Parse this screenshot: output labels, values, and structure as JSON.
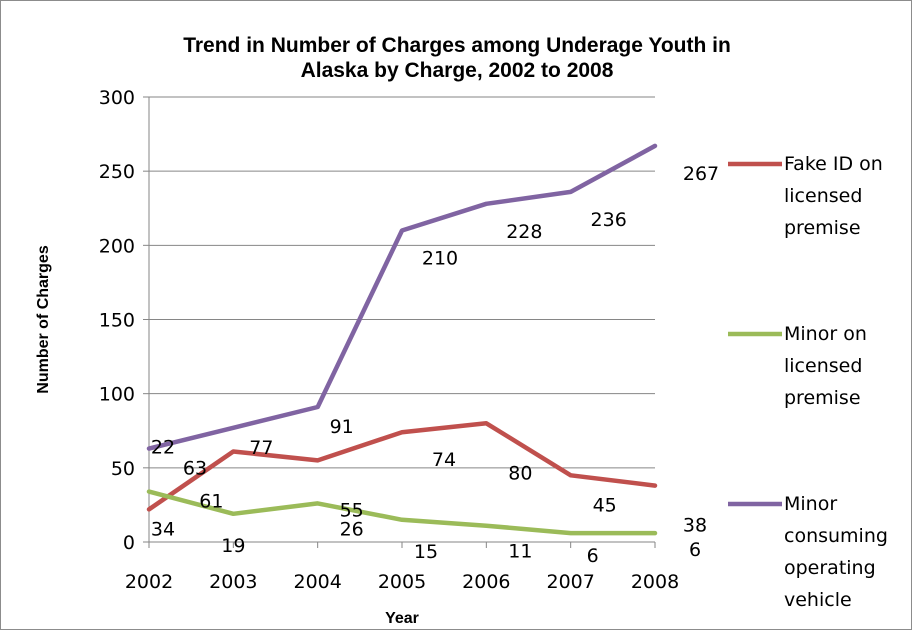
{
  "chart_data": {
    "type": "line",
    "title_lines": [
      "Trend in Number of Charges among Underage Youth in",
      "Alaska by Charge, 2002 to 2008"
    ],
    "xlabel": "Year",
    "ylabel": "Number of Charges",
    "categories": [
      "2002",
      "2003",
      "2004",
      "2005",
      "2006",
      "2007",
      "2008"
    ],
    "ylim": [
      0,
      300
    ],
    "yticks": [
      0,
      50,
      100,
      150,
      200,
      250,
      300
    ],
    "grid": true,
    "legend_position": "right",
    "series": [
      {
        "name_lines": [
          "Fake ID on",
          "licensed",
          "premise"
        ],
        "color": "#c0504d",
        "values": [
          22,
          61,
          55,
          74,
          80,
          45,
          38
        ],
        "label_text": [
          "22",
          "61",
          "55",
          "74",
          "80",
          "45",
          "38"
        ]
      },
      {
        "name_lines": [
          "Minor on",
          "licensed",
          "premise"
        ],
        "color": "#9bbb59",
        "values": [
          34,
          19,
          26,
          15,
          11,
          6,
          6
        ],
        "label_text": [
          "34",
          "19",
          "26",
          "15",
          "11",
          "6",
          "6"
        ]
      },
      {
        "name_lines": [
          "Minor",
          "consuming",
          "operating",
          "vehicle"
        ],
        "color": "#8064a2",
        "values": [
          63,
          77,
          91,
          210,
          228,
          236,
          267
        ],
        "label_text": [
          "63",
          "77",
          "91",
          "210",
          "228",
          "236",
          "267"
        ]
      }
    ]
  }
}
